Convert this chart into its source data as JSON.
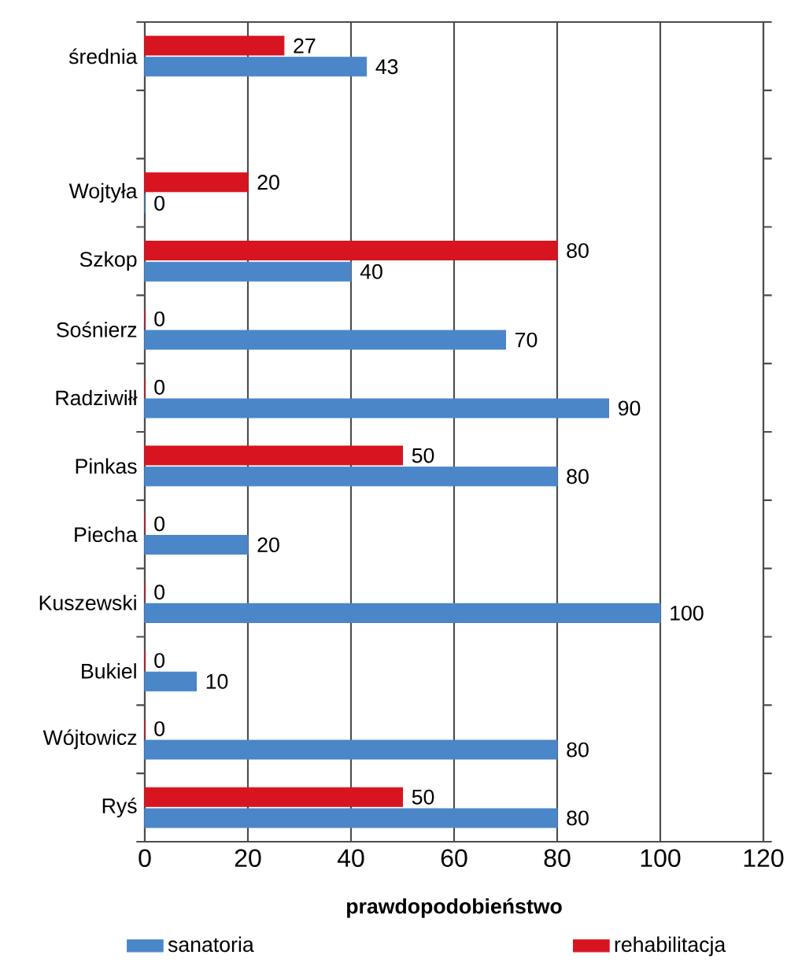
{
  "chart_data": {
    "type": "bar",
    "orientation": "horizontal",
    "xlabel": "prawdopodobieństwo",
    "categories": [
      "średnia",
      null,
      "Wojtyła",
      "Szkop",
      "Sośnierz",
      "Radziwiłł",
      "Pinkas",
      "Piecha",
      "Kuszewski",
      "Bukiel",
      "Wójtowicz",
      "Ryś"
    ],
    "series": [
      {
        "name": "rehabilitacja",
        "color": "#d7141f",
        "values": [
          27,
          null,
          20,
          80,
          0,
          0,
          50,
          0,
          0,
          0,
          0,
          50
        ]
      },
      {
        "name": "sanatoria",
        "color": "#4a86c8",
        "values": [
          43,
          null,
          0,
          40,
          70,
          90,
          80,
          20,
          100,
          10,
          80,
          80
        ]
      }
    ],
    "xlim": [
      0,
      120
    ],
    "xticks": [
      0,
      20,
      40,
      60,
      80,
      100,
      120
    ],
    "grid": "x",
    "legend": "bottom",
    "data_labels": true
  }
}
